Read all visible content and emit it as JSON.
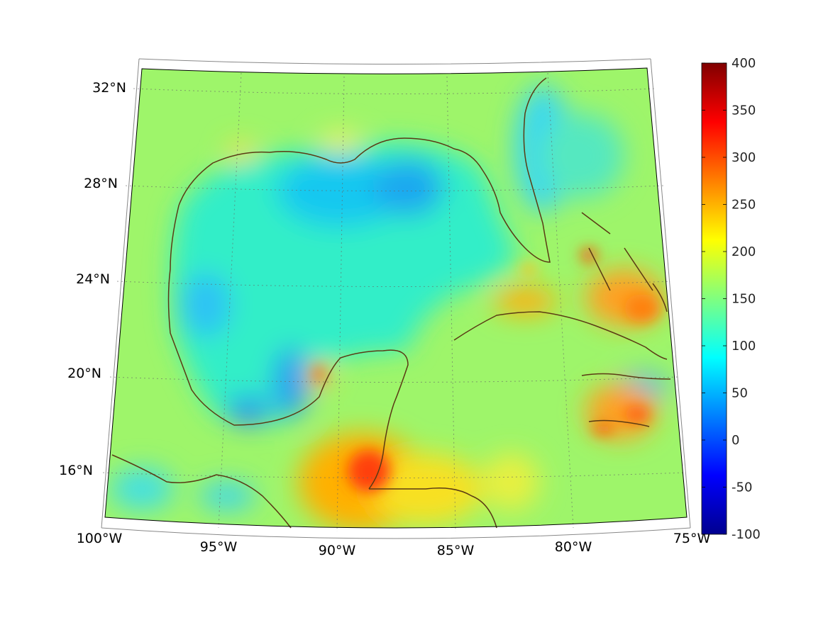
{
  "chart_data": {
    "type": "heatmap",
    "projection": "conic",
    "x_ticks": [
      "100°W",
      "95°W",
      "90°W",
      "85°W",
      "80°W",
      "75°W"
    ],
    "y_ticks": [
      "16°N",
      "20°N",
      "24°N",
      "28°N",
      "32°N"
    ],
    "colorbar": {
      "ticks": [
        "400",
        "350",
        "300",
        "250",
        "200",
        "150",
        "100",
        "50",
        "0",
        "-50",
        "-100"
      ],
      "range": [
        -100,
        400
      ],
      "colormap": "jet"
    },
    "grid": true,
    "coastline_color": "#5a3a14",
    "field_description_values": {
      "gulf_interior_typical": 100,
      "land_and_caribbean_typical": 170,
      "yucatan_belize_max": 330,
      "cuba_bahamas_hotspots": 270,
      "hispaniola_jamaica_hotspots": 270
    }
  }
}
